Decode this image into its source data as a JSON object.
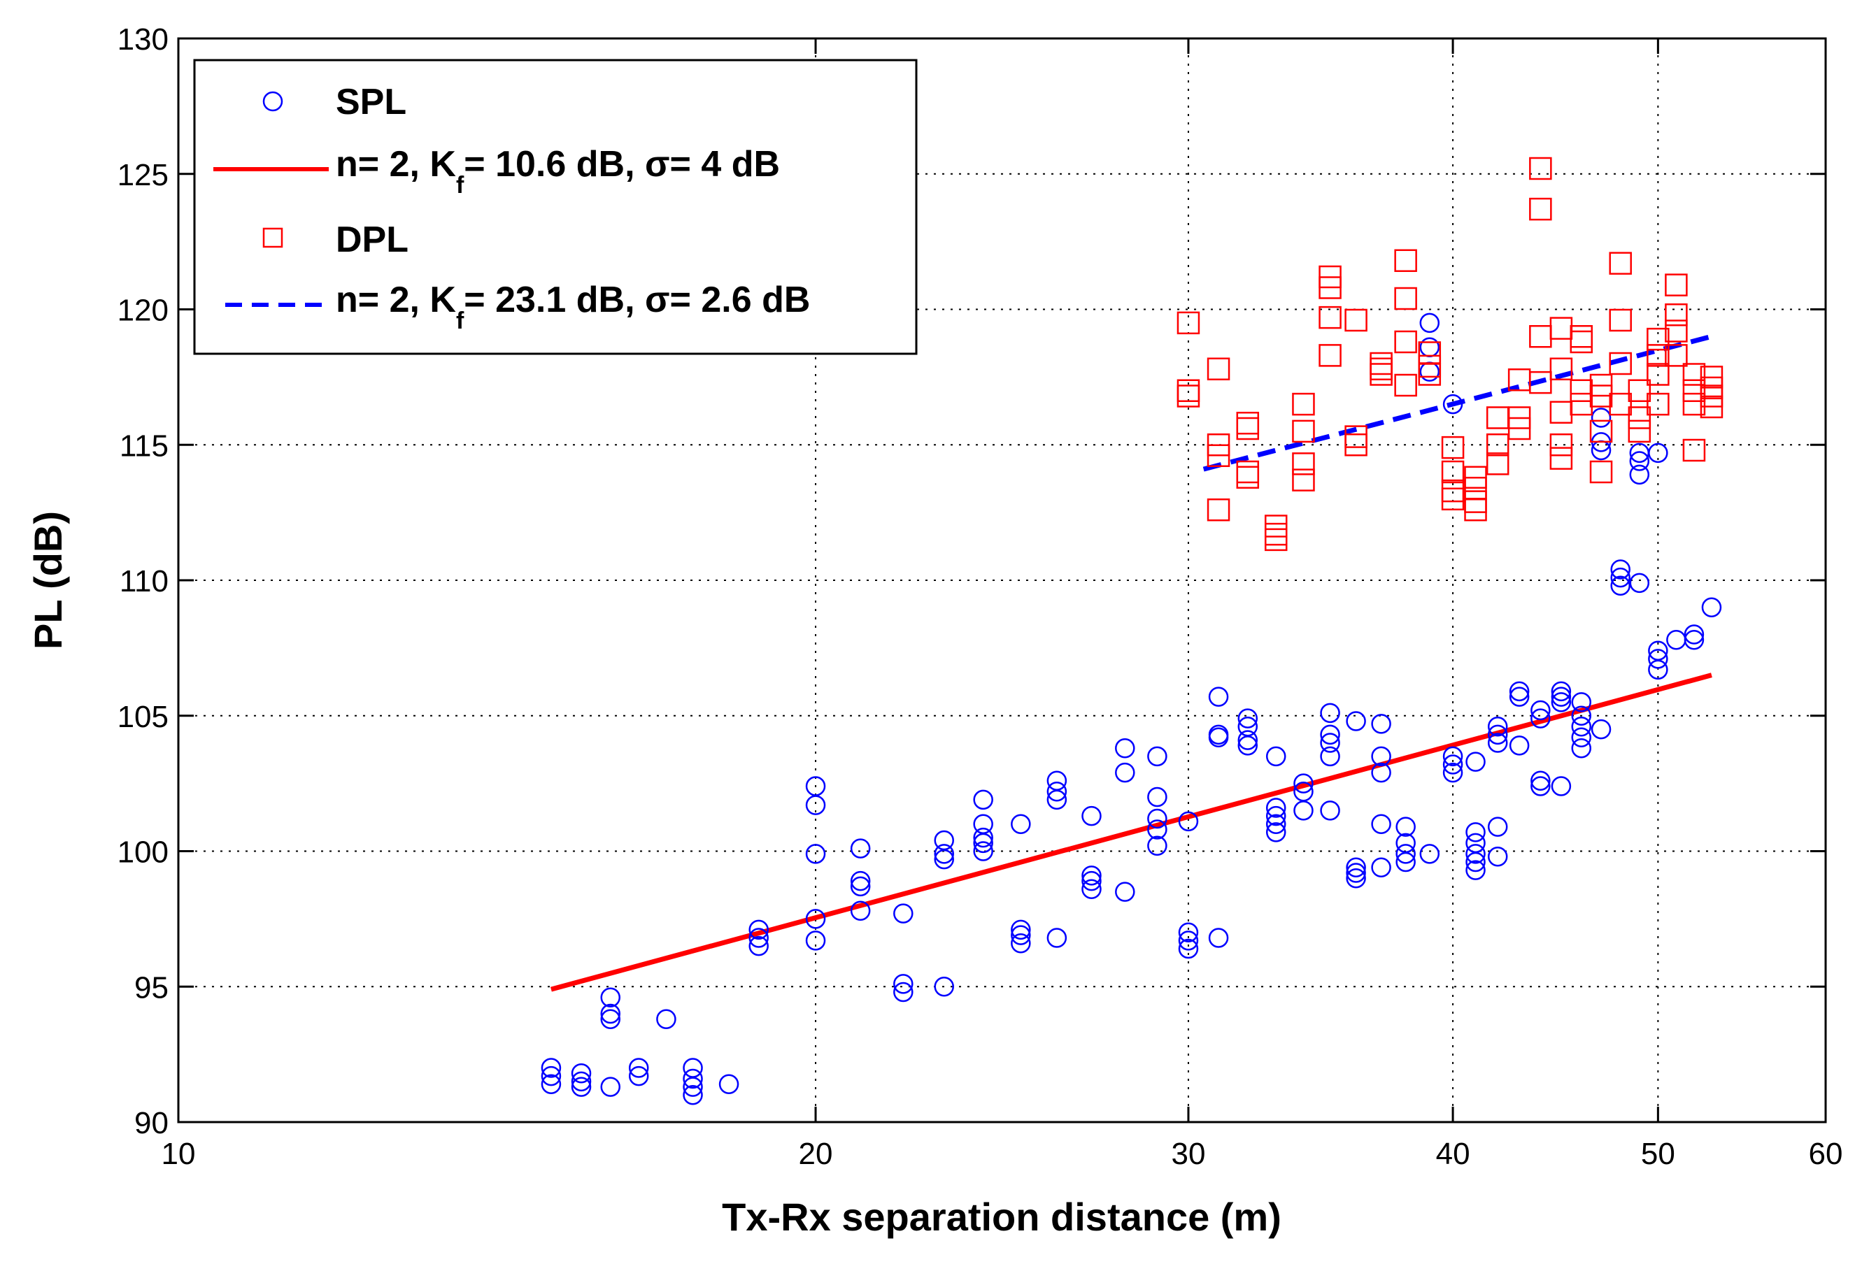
{
  "chart_data": {
    "type": "scatter",
    "title": "",
    "xlabel": "Tx-Rx separation distance (m)",
    "ylabel": "PL (dB)",
    "xscale": "log",
    "xlim": [
      10,
      60
    ],
    "ylim": [
      90,
      130
    ],
    "grid": true,
    "x_ticks": [
      10,
      20,
      30,
      40,
      50,
      60
    ],
    "y_ticks": [
      90,
      95,
      100,
      105,
      110,
      115,
      120,
      125,
      130
    ],
    "legend_position": "top-left",
    "colors": {
      "spl": "#0000ff",
      "dpl": "#ff0000",
      "spl_fit": "#ff0000",
      "dpl_fit": "#0000ff"
    },
    "legend": [
      {
        "key": "spl",
        "label": "SPL"
      },
      {
        "key": "spl_fit",
        "label_prefix": "n= 2, K",
        "label_sub": "f",
        "label_suffix": "= 10.6 dB, σ= 4 dB"
      },
      {
        "key": "dpl",
        "label": "DPL"
      },
      {
        "key": "dpl_fit",
        "label_prefix": "n= 2, K",
        "label_sub": "f",
        "label_suffix": "= 23.1 dB, σ= 2.6 dB"
      }
    ],
    "series": [
      {
        "name": "SPL",
        "marker": "circle",
        "points": [
          [
            15,
            91.4
          ],
          [
            15,
            91.7
          ],
          [
            15,
            92.0
          ],
          [
            15.5,
            91.3
          ],
          [
            15.5,
            91.5
          ],
          [
            15.5,
            91.8
          ],
          [
            16,
            91.3
          ],
          [
            16,
            93.8
          ],
          [
            16,
            94.0
          ],
          [
            16,
            94.6
          ],
          [
            16.5,
            91.7
          ],
          [
            16.5,
            92.0
          ],
          [
            17,
            93.8
          ],
          [
            17.5,
            91.0
          ],
          [
            17.5,
            91.3
          ],
          [
            17.5,
            91.6
          ],
          [
            17.5,
            92.0
          ],
          [
            18.2,
            91.4
          ],
          [
            18.8,
            96.5
          ],
          [
            18.8,
            96.8
          ],
          [
            18.8,
            97.1
          ],
          [
            20,
            96.7
          ],
          [
            20,
            97.5
          ],
          [
            20,
            99.9
          ],
          [
            20,
            101.7
          ],
          [
            20,
            102.4
          ],
          [
            21,
            97.8
          ],
          [
            21,
            98.7
          ],
          [
            21,
            98.9
          ],
          [
            21,
            100.1
          ],
          [
            22,
            94.8
          ],
          [
            22,
            95.1
          ],
          [
            22,
            97.7
          ],
          [
            23,
            95.0
          ],
          [
            23,
            99.7
          ],
          [
            23,
            99.9
          ],
          [
            23,
            100.4
          ],
          [
            24,
            100.0
          ],
          [
            24,
            100.3
          ],
          [
            24,
            100.5
          ],
          [
            24,
            101.0
          ],
          [
            24,
            101.9
          ],
          [
            25,
            96.6
          ],
          [
            25,
            96.9
          ],
          [
            25,
            97.1
          ],
          [
            25,
            101.0
          ],
          [
            26,
            96.8
          ],
          [
            26,
            101.9
          ],
          [
            26,
            102.2
          ],
          [
            26,
            102.6
          ],
          [
            27,
            98.6
          ],
          [
            27,
            98.9
          ],
          [
            27,
            99.1
          ],
          [
            27,
            101.3
          ],
          [
            28,
            98.5
          ],
          [
            28,
            102.9
          ],
          [
            28,
            103.8
          ],
          [
            29,
            100.2
          ],
          [
            29,
            100.8
          ],
          [
            29,
            101.2
          ],
          [
            29,
            102.0
          ],
          [
            29,
            103.5
          ],
          [
            30,
            96.4
          ],
          [
            30,
            96.7
          ],
          [
            30,
            97.0
          ],
          [
            30,
            101.1
          ],
          [
            31,
            96.8
          ],
          [
            31,
            104.2
          ],
          [
            31,
            104.3
          ],
          [
            31,
            105.7
          ],
          [
            32,
            103.9
          ],
          [
            32,
            104.1
          ],
          [
            32,
            104.6
          ],
          [
            32,
            104.9
          ],
          [
            33,
            100.7
          ],
          [
            33,
            101.0
          ],
          [
            33,
            101.3
          ],
          [
            33,
            101.6
          ],
          [
            33,
            103.5
          ],
          [
            34,
            101.5
          ],
          [
            34,
            102.2
          ],
          [
            34,
            102.5
          ],
          [
            35,
            101.5
          ],
          [
            35,
            103.5
          ],
          [
            35,
            104.0
          ],
          [
            35,
            104.3
          ],
          [
            35,
            105.1
          ],
          [
            36,
            99.0
          ],
          [
            36,
            99.2
          ],
          [
            36,
            99.4
          ],
          [
            36,
            104.8
          ],
          [
            37,
            99.4
          ],
          [
            37,
            101.0
          ],
          [
            37,
            102.9
          ],
          [
            37,
            103.5
          ],
          [
            37,
            104.7
          ],
          [
            38,
            99.6
          ],
          [
            38,
            99.9
          ],
          [
            38,
            100.3
          ],
          [
            38,
            100.9
          ],
          [
            39,
            99.9
          ],
          [
            39,
            117.7
          ],
          [
            39,
            118.6
          ],
          [
            39,
            119.5
          ],
          [
            40,
            102.9
          ],
          [
            40,
            103.2
          ],
          [
            40,
            103.5
          ],
          [
            40,
            116.5
          ],
          [
            41,
            99.3
          ],
          [
            41,
            99.6
          ],
          [
            41,
            99.9
          ],
          [
            41,
            100.3
          ],
          [
            41,
            100.7
          ],
          [
            41,
            103.3
          ],
          [
            42,
            99.8
          ],
          [
            42,
            100.9
          ],
          [
            42,
            104.0
          ],
          [
            42,
            104.3
          ],
          [
            42,
            104.6
          ],
          [
            43,
            103.9
          ],
          [
            43,
            105.7
          ],
          [
            43,
            105.9
          ],
          [
            44,
            102.4
          ],
          [
            44,
            102.6
          ],
          [
            44,
            104.9
          ],
          [
            44,
            105.2
          ],
          [
            45,
            102.4
          ],
          [
            45,
            105.5
          ],
          [
            45,
            105.7
          ],
          [
            45,
            105.9
          ],
          [
            46,
            103.8
          ],
          [
            46,
            104.2
          ],
          [
            46,
            104.6
          ],
          [
            46,
            105.0
          ],
          [
            46,
            105.5
          ],
          [
            47,
            104.5
          ],
          [
            47,
            114.8
          ],
          [
            47,
            115.1
          ],
          [
            47,
            116.0
          ],
          [
            48,
            109.8
          ],
          [
            48,
            110.1
          ],
          [
            48,
            110.4
          ],
          [
            49,
            109.9
          ],
          [
            49,
            113.9
          ],
          [
            49,
            114.4
          ],
          [
            49,
            114.7
          ],
          [
            50,
            106.7
          ],
          [
            50,
            107.1
          ],
          [
            50,
            107.4
          ],
          [
            50,
            114.7
          ],
          [
            51,
            107.8
          ],
          [
            52,
            107.8
          ],
          [
            52,
            108.0
          ],
          [
            53,
            109.0
          ]
        ]
      },
      {
        "name": "DPL",
        "marker": "square",
        "points": [
          [
            30,
            119.5
          ],
          [
            30,
            117.0
          ],
          [
            30,
            116.8
          ],
          [
            31,
            117.8
          ],
          [
            31,
            114.6
          ],
          [
            31,
            115.0
          ],
          [
            31,
            112.6
          ],
          [
            32,
            115.8
          ],
          [
            32,
            115.6
          ],
          [
            32,
            114.0
          ],
          [
            32,
            113.8
          ],
          [
            33,
            112.0
          ],
          [
            33,
            111.7
          ],
          [
            33,
            111.5
          ],
          [
            34,
            116.5
          ],
          [
            34,
            115.5
          ],
          [
            34,
            114.3
          ],
          [
            34,
            113.7
          ],
          [
            35,
            121.2
          ],
          [
            35,
            120.8
          ],
          [
            35,
            119.7
          ],
          [
            35,
            118.3
          ],
          [
            36,
            119.6
          ],
          [
            36,
            115.3
          ],
          [
            36,
            115.0
          ],
          [
            37,
            118.0
          ],
          [
            37,
            117.6
          ],
          [
            37,
            117.8
          ],
          [
            38,
            121.8
          ],
          [
            38,
            120.4
          ],
          [
            38,
            118.8
          ],
          [
            38,
            117.2
          ],
          [
            39,
            118.4
          ],
          [
            39,
            117.9
          ],
          [
            39,
            117.6
          ],
          [
            40,
            114.9
          ],
          [
            40,
            114.0
          ],
          [
            40,
            113.3
          ],
          [
            40,
            113.0
          ],
          [
            41,
            113.8
          ],
          [
            41,
            113.4
          ],
          [
            41,
            112.9
          ],
          [
            41,
            112.6
          ],
          [
            42,
            116.0
          ],
          [
            42,
            115.0
          ],
          [
            42,
            114.3
          ],
          [
            43,
            117.4
          ],
          [
            43,
            116.0
          ],
          [
            43,
            115.6
          ],
          [
            44,
            125.2
          ],
          [
            44,
            123.7
          ],
          [
            44,
            119.0
          ],
          [
            44,
            117.3
          ],
          [
            45,
            119.3
          ],
          [
            45,
            117.8
          ],
          [
            45,
            116.2
          ],
          [
            45,
            115.0
          ],
          [
            45,
            114.5
          ],
          [
            46,
            119.0
          ],
          [
            46,
            118.8
          ],
          [
            46,
            117.0
          ],
          [
            46,
            116.5
          ],
          [
            47,
            117.2
          ],
          [
            47,
            116.8
          ],
          [
            47,
            115.5
          ],
          [
            47,
            114.0
          ],
          [
            48,
            121.7
          ],
          [
            48,
            119.6
          ],
          [
            48,
            118.0
          ],
          [
            48,
            116.5
          ],
          [
            49,
            117.0
          ],
          [
            49,
            116.0
          ],
          [
            49,
            115.5
          ],
          [
            50,
            118.9
          ],
          [
            50,
            118.3
          ],
          [
            50,
            117.6
          ],
          [
            50,
            116.5
          ],
          [
            51,
            120.9
          ],
          [
            51,
            119.8
          ],
          [
            51,
            119.2
          ],
          [
            51,
            118.3
          ],
          [
            52,
            117.6
          ],
          [
            52,
            117.0
          ],
          [
            52,
            116.5
          ],
          [
            52,
            114.8
          ],
          [
            53,
            117.5
          ],
          [
            53,
            117.1
          ],
          [
            53,
            116.8
          ],
          [
            53,
            116.4
          ]
        ]
      },
      {
        "name": "SPL fit",
        "style": "solid-line",
        "points": [
          [
            15,
            94.9
          ],
          [
            53,
            106.5
          ]
        ]
      },
      {
        "name": "DPL fit",
        "style": "dashed-line",
        "points": [
          [
            30.5,
            114.1
          ],
          [
            53,
            119.0
          ]
        ]
      }
    ]
  }
}
